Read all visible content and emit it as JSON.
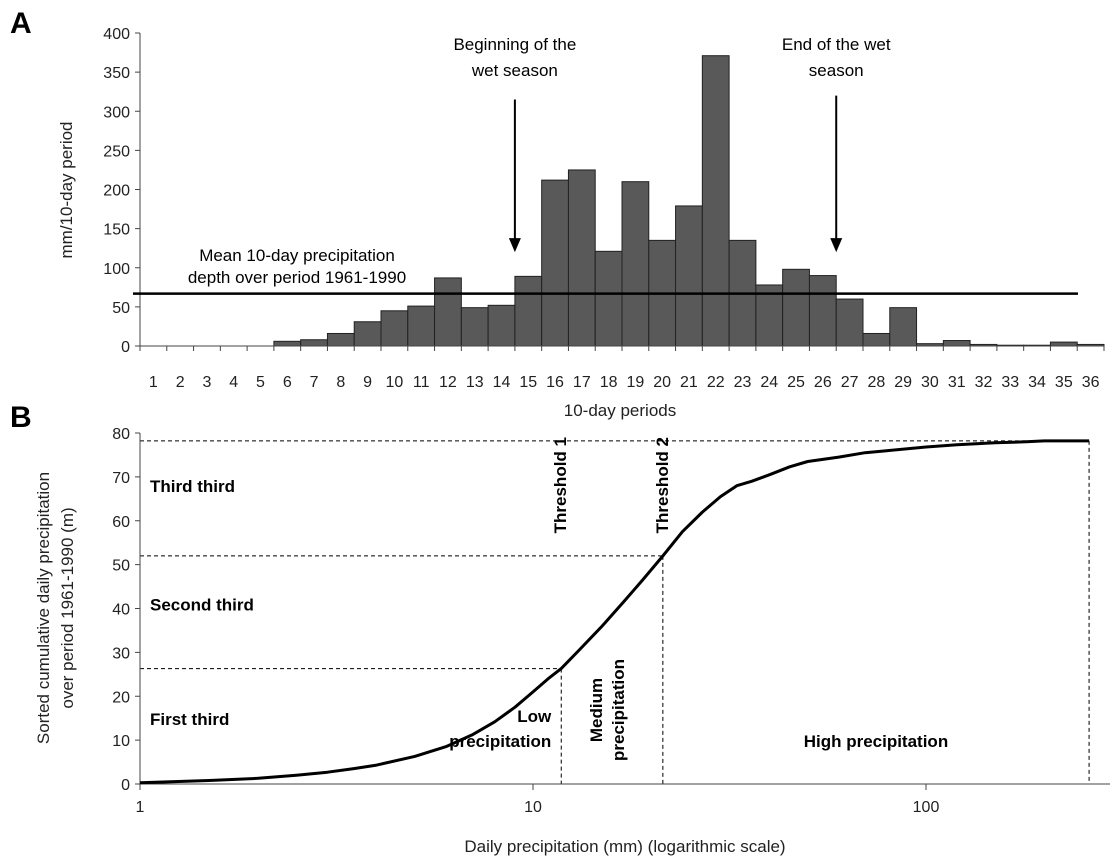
{
  "chart_data": [
    {
      "panel": "A",
      "type": "bar",
      "xlabel": "10-day periods",
      "ylabel": "mm/10-day period",
      "ylim": [
        0,
        400
      ],
      "yticks": [
        0,
        50,
        100,
        150,
        200,
        250,
        300,
        350,
        400
      ],
      "categories": [
        "1",
        "2",
        "3",
        "4",
        "5",
        "6",
        "7",
        "8",
        "9",
        "10",
        "11",
        "12",
        "13",
        "14",
        "15",
        "16",
        "17",
        "18",
        "19",
        "20",
        "21",
        "22",
        "23",
        "24",
        "25",
        "26",
        "27",
        "28",
        "29",
        "30",
        "31",
        "32",
        "33",
        "34",
        "35",
        "36"
      ],
      "values": [
        0,
        0,
        0,
        0,
        0,
        6,
        8,
        16,
        31,
        45,
        51,
        87,
        49,
        52,
        89,
        212,
        225,
        121,
        210,
        135,
        179,
        371,
        135,
        78,
        98,
        90,
        60,
        16,
        49,
        3,
        7,
        2,
        1,
        1,
        5,
        2
      ],
      "mean_line": {
        "value": 67,
        "label_lines": [
          "Mean 10-day precipitation",
          "depth over period 1961-1990"
        ]
      },
      "annotations": [
        {
          "text_lines": [
            "Beginning of the",
            "wet season"
          ],
          "x": 14.5,
          "arrow_from_y": 315,
          "arrow_to_y": 120
        },
        {
          "text_lines": [
            "End of the wet",
            "season"
          ],
          "x": 26.5,
          "arrow_from_y": 320,
          "arrow_to_y": 120
        }
      ],
      "grid": false
    },
    {
      "panel": "B",
      "type": "line",
      "xscale": "log",
      "xlabel": "Daily precipitation (mm) (logarithmic scale)",
      "ylabel_lines": [
        "Sorted cumulative daily precipitation",
        "over period 1961-1990 (m)"
      ],
      "xlim": [
        1,
        260
      ],
      "ylim": [
        0,
        80
      ],
      "xticks": [
        1,
        10,
        100
      ],
      "yticks": [
        0,
        10,
        20,
        30,
        40,
        50,
        60,
        70,
        80
      ],
      "series": [
        {
          "x": [
            1,
            1.5,
            2,
            2.5,
            3,
            3.5,
            4,
            5,
            6,
            7,
            8,
            9,
            10,
            11,
            11.8,
            13,
            15,
            17,
            19,
            21.4,
            24,
            27,
            30,
            33,
            36,
            40,
            45,
            50,
            60,
            70,
            80,
            100,
            120,
            150,
            180,
            200,
            230,
            260
          ],
          "y": [
            0.3,
            0.8,
            1.3,
            2.0,
            2.7,
            3.5,
            4.3,
            6.3,
            8.5,
            11.2,
            14.2,
            17.5,
            21.0,
            24.2,
            26.3,
            30.2,
            36.0,
            41.5,
            46.5,
            52.0,
            57.5,
            62.0,
            65.5,
            68.0,
            69.0,
            70.5,
            72.3,
            73.5,
            74.5,
            75.5,
            76.0,
            76.8,
            77.3,
            77.8,
            78.0,
            78.2,
            78.2,
            78.2
          ]
        }
      ],
      "reference_lines": {
        "thirds_y": [
          26.3,
          52.0,
          78.2
        ],
        "threshold_x": [
          11.8,
          21.4
        ],
        "max_x": 260
      },
      "region_labels": {
        "third_third": "Third third",
        "second_third": "Second third",
        "first_third": "First third",
        "threshold_1": "Threshold 1",
        "threshold_2": "Threshold 2",
        "low_precipitation": [
          "Low",
          "precipitation"
        ],
        "medium_precipitation": [
          "Medium",
          "precipitation"
        ],
        "high_precipitation": "High precipitation"
      },
      "grid": false
    }
  ],
  "panel_labels": [
    "A",
    "B"
  ]
}
